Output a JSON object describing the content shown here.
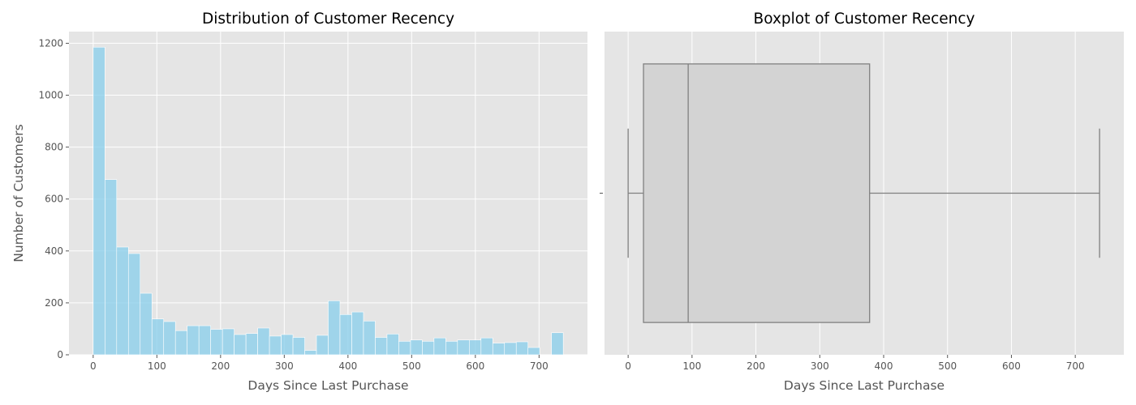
{
  "chart_data": [
    {
      "type": "bar",
      "title": "Distribution of Customer Recency",
      "xlabel": "Days Since Last Purchase",
      "ylabel": "Number of Customers",
      "xlim": [
        -38,
        776
      ],
      "ylim": [
        0,
        1245
      ],
      "xticks": [
        0,
        100,
        200,
        300,
        400,
        500,
        600,
        700
      ],
      "yticks": [
        0,
        200,
        400,
        600,
        800,
        1000,
        1200
      ],
      "grid": true,
      "bin_width": 18.45,
      "bin_start": 0,
      "values": [
        1185,
        675,
        415,
        390,
        237,
        138,
        128,
        93,
        112,
        112,
        98,
        100,
        78,
        82,
        103,
        72,
        78,
        67,
        17,
        75,
        208,
        155,
        165,
        130,
        67,
        80,
        52,
        57,
        52,
        65,
        52,
        57,
        57,
        65,
        45,
        47,
        50,
        28,
        0,
        85
      ],
      "color": "#87ceeb"
    },
    {
      "type": "box",
      "title": "Boxplot of Customer Recency",
      "xlabel": "Days Since Last Purchase",
      "ylabel": "",
      "xlim": [
        -37,
        776
      ],
      "xticks": [
        0,
        100,
        200,
        300,
        400,
        500,
        600,
        700
      ],
      "grid": true,
      "whisker_low": 0,
      "q1": 24,
      "median": 94,
      "q3": 378,
      "whisker_high": 738,
      "box_color": "#d3d3d3",
      "line_color": "#808080"
    }
  ]
}
